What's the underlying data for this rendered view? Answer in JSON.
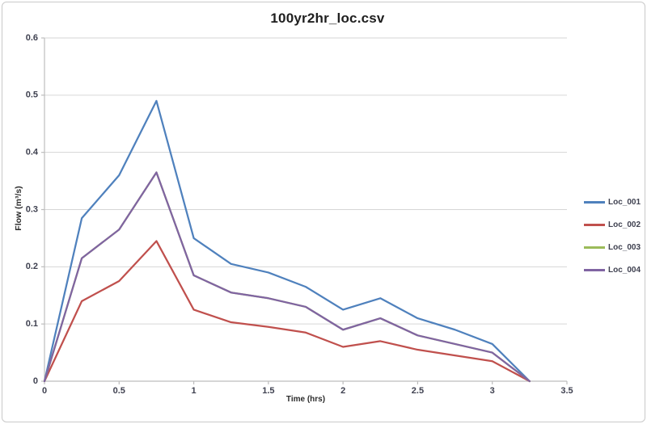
{
  "chart_data": {
    "type": "line",
    "title": "100yr2hr_loc.csv",
    "xlabel": "Time (hrs)",
    "ylabel": "Flow (m³/s)",
    "xlim": [
      0,
      3.5
    ],
    "ylim": [
      0,
      0.6
    ],
    "xticks": [
      0,
      0.5,
      1,
      1.5,
      2,
      2.5,
      3,
      3.5
    ],
    "yticks": [
      0,
      0.1,
      0.2,
      0.3,
      0.4,
      0.5,
      0.6
    ],
    "grid": "horizontal",
    "legend_position": "right",
    "x": [
      0,
      0.25,
      0.5,
      0.75,
      1,
      1.25,
      1.5,
      1.75,
      2,
      2.25,
      2.5,
      2.75,
      3,
      3.25
    ],
    "series": [
      {
        "name": "Loc_001",
        "color": "#4F81BD",
        "values": [
          0,
          0.285,
          0.36,
          0.49,
          0.25,
          0.205,
          0.19,
          0.165,
          0.125,
          0.145,
          0.11,
          0.09,
          0.065,
          0
        ]
      },
      {
        "name": "Loc_002",
        "color": "#C0504D",
        "values": [
          0,
          0.14,
          0.175,
          0.245,
          0.125,
          0.103,
          0.095,
          0.085,
          0.06,
          0.07,
          0.055,
          0.045,
          0.035,
          0
        ]
      },
      {
        "name": "Loc_003",
        "color": "#9BBB59",
        "hidden_behind": "Loc_004",
        "values": [
          0,
          0.215,
          0.265,
          0.365,
          0.185,
          0.155,
          0.145,
          0.13,
          0.09,
          0.11,
          0.08,
          0.065,
          0.05,
          0
        ]
      },
      {
        "name": "Loc_004",
        "color": "#8064A2",
        "values": [
          0,
          0.215,
          0.265,
          0.365,
          0.185,
          0.155,
          0.145,
          0.13,
          0.09,
          0.11,
          0.08,
          0.065,
          0.05,
          0
        ]
      }
    ],
    "colors": {
      "gridline": "#D6D6D6",
      "axis": "#BDBDBD",
      "tick_text": "#3F4150",
      "title_text": "#1F1F1F",
      "frame_border": "#C9C9C9"
    }
  }
}
